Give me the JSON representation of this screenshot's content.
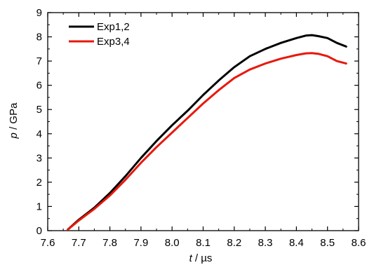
{
  "chart_data": {
    "type": "line",
    "title": "",
    "xlabel_symbol": "t",
    "xlabel_unit": " / µs",
    "ylabel_symbol": "p",
    "ylabel_unit": " / GPa",
    "xlim": [
      7.6,
      8.6
    ],
    "ylim": [
      0,
      9
    ],
    "xticks": [
      "7.6",
      "7.7",
      "7.8",
      "7.9",
      "8.0",
      "8.1",
      "8.2",
      "8.3",
      "8.4",
      "8.5",
      "8.6"
    ],
    "yticks": [
      "0",
      "1",
      "2",
      "3",
      "4",
      "5",
      "6",
      "7",
      "8",
      "9"
    ],
    "grid": false,
    "legend_position": "top-left",
    "series": [
      {
        "name": "Exp1,2",
        "color": "#000000",
        "x": [
          7.665,
          7.7,
          7.75,
          7.8,
          7.85,
          7.9,
          7.95,
          8.0,
          8.05,
          8.1,
          8.15,
          8.2,
          8.25,
          8.3,
          8.35,
          8.4,
          8.43,
          8.45,
          8.47,
          8.5,
          8.53,
          8.56
        ],
        "y": [
          0.05,
          0.45,
          0.95,
          1.55,
          2.25,
          3.0,
          3.7,
          4.35,
          4.95,
          5.6,
          6.2,
          6.75,
          7.2,
          7.5,
          7.75,
          7.95,
          8.05,
          8.07,
          8.03,
          7.95,
          7.75,
          7.6
        ]
      },
      {
        "name": "Exp3,4",
        "color": "#e8180c",
        "x": [
          7.665,
          7.7,
          7.75,
          7.8,
          7.85,
          7.9,
          7.95,
          8.0,
          8.05,
          8.1,
          8.15,
          8.2,
          8.25,
          8.3,
          8.35,
          8.4,
          8.43,
          8.45,
          8.47,
          8.5,
          8.53,
          8.56
        ],
        "y": [
          0.05,
          0.42,
          0.9,
          1.45,
          2.1,
          2.8,
          3.45,
          4.05,
          4.65,
          5.25,
          5.8,
          6.3,
          6.65,
          6.9,
          7.1,
          7.25,
          7.32,
          7.33,
          7.3,
          7.2,
          7.0,
          6.9
        ]
      }
    ]
  }
}
